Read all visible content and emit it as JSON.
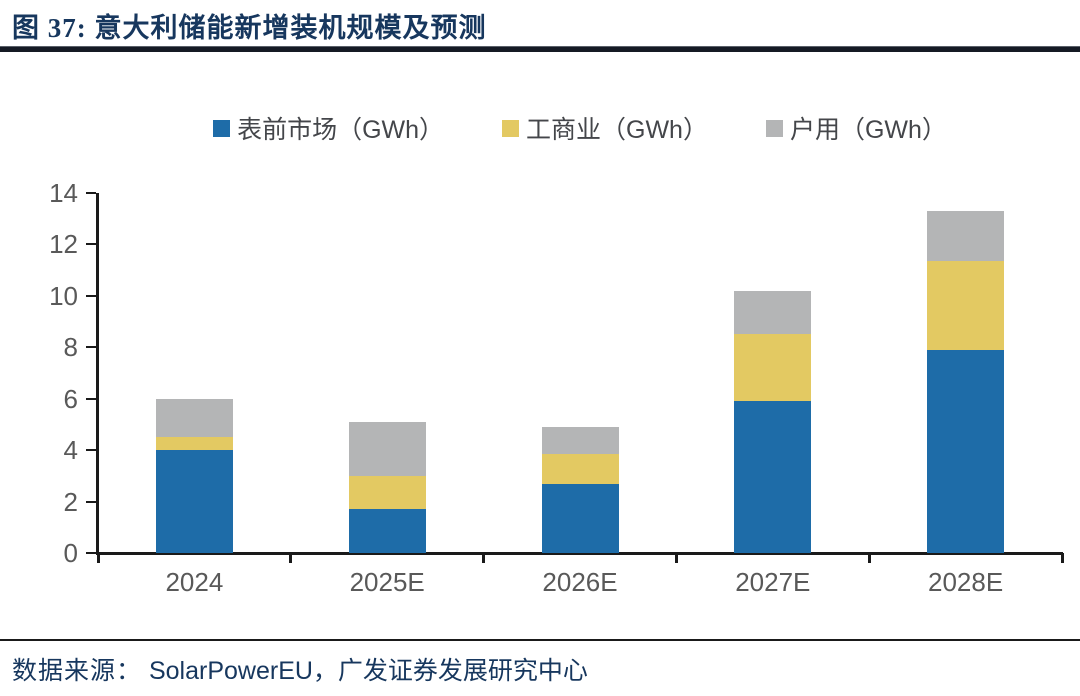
{
  "figure": {
    "title": "图 37: 意大利储能新增装机规模及预测",
    "source_label": "数据来源：",
    "source_text": "SolarPowerEU，广发证券发展研究中心"
  },
  "colors": {
    "title_navy": "#17375E",
    "axis_text_gray": "#595959",
    "axis_line_black": "#1a1a1a"
  },
  "chart_data": {
    "type": "bar",
    "stacked": true,
    "title": "意大利储能新增装机规模及预测",
    "xlabel": "",
    "ylabel": "",
    "categories": [
      "2024",
      "2025E",
      "2026E",
      "2027E",
      "2028E"
    ],
    "series": [
      {
        "name": "表前市场（GWh）",
        "color": "#1E6CA8",
        "values": [
          4.0,
          1.7,
          2.7,
          5.9,
          7.9
        ]
      },
      {
        "name": "工商业（GWh）",
        "color": "#E3C962",
        "values": [
          0.5,
          1.3,
          1.15,
          2.6,
          3.45
        ]
      },
      {
        "name": "户用（GWh）",
        "color": "#B4B5B6",
        "values": [
          1.5,
          2.1,
          1.05,
          1.7,
          1.95
        ]
      }
    ],
    "totals": [
      6.0,
      5.1,
      4.9,
      10.2,
      13.3
    ],
    "ylim": [
      0,
      14
    ],
    "yticks": [
      0,
      2,
      4,
      6,
      8,
      10,
      12,
      14
    ],
    "legend_position": "top",
    "grid": false
  }
}
